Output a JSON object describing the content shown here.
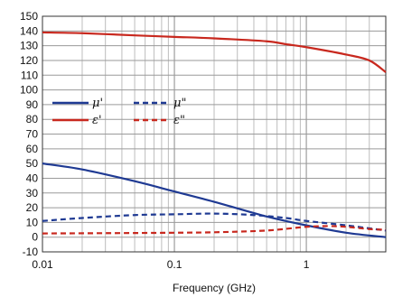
{
  "chart_data": {
    "type": "line",
    "xlabel": "Frequency (GHz)",
    "ylabel": "",
    "x_scale": "log",
    "xlim": [
      0.01,
      4
    ],
    "ylim": [
      -10,
      150
    ],
    "x_ticks": [
      {
        "value": 0.01,
        "label": "0.01"
      },
      {
        "value": 0.1,
        "label": "0.1"
      },
      {
        "value": 1,
        "label": "1"
      }
    ],
    "y_ticks": [
      -10,
      0,
      10,
      20,
      30,
      40,
      50,
      60,
      70,
      80,
      90,
      100,
      110,
      120,
      130,
      140,
      150
    ],
    "grid": "major and minor vertical, major horizontal",
    "legend_position": "left, middle",
    "series": [
      {
        "name": "μ'",
        "color": "#1f3a93",
        "style": "solid",
        "points": [
          [
            0.01,
            50
          ],
          [
            0.02,
            46
          ],
          [
            0.05,
            38
          ],
          [
            0.1,
            31
          ],
          [
            0.2,
            24
          ],
          [
            0.5,
            14
          ],
          [
            1,
            8
          ],
          [
            2,
            3
          ],
          [
            4,
            0
          ]
        ]
      },
      {
        "name": "μ\"",
        "color": "#1f3a93",
        "style": "dashed",
        "points": [
          [
            0.01,
            11
          ],
          [
            0.02,
            13
          ],
          [
            0.05,
            15
          ],
          [
            0.1,
            15.5
          ],
          [
            0.2,
            16
          ],
          [
            0.4,
            15
          ],
          [
            0.7,
            13
          ],
          [
            1,
            11
          ],
          [
            2,
            8
          ],
          [
            4,
            4.5
          ]
        ]
      },
      {
        "name": "ε'",
        "color": "#c8281e",
        "style": "solid",
        "points": [
          [
            0.01,
            139
          ],
          [
            0.02,
            138.5
          ],
          [
            0.05,
            137
          ],
          [
            0.1,
            136
          ],
          [
            0.2,
            135
          ],
          [
            0.5,
            133
          ],
          [
            0.7,
            131
          ],
          [
            1,
            129
          ],
          [
            2,
            124
          ],
          [
            3,
            120
          ],
          [
            4,
            112
          ]
        ]
      },
      {
        "name": "ε\"",
        "color": "#c8281e",
        "style": "dashed",
        "points": [
          [
            0.01,
            2.5
          ],
          [
            0.05,
            2.8
          ],
          [
            0.1,
            3
          ],
          [
            0.2,
            3.3
          ],
          [
            0.5,
            4.5
          ],
          [
            1,
            7
          ],
          [
            1.5,
            7.5
          ],
          [
            2,
            7
          ],
          [
            3,
            5.5
          ],
          [
            4,
            5
          ]
        ]
      }
    ]
  }
}
